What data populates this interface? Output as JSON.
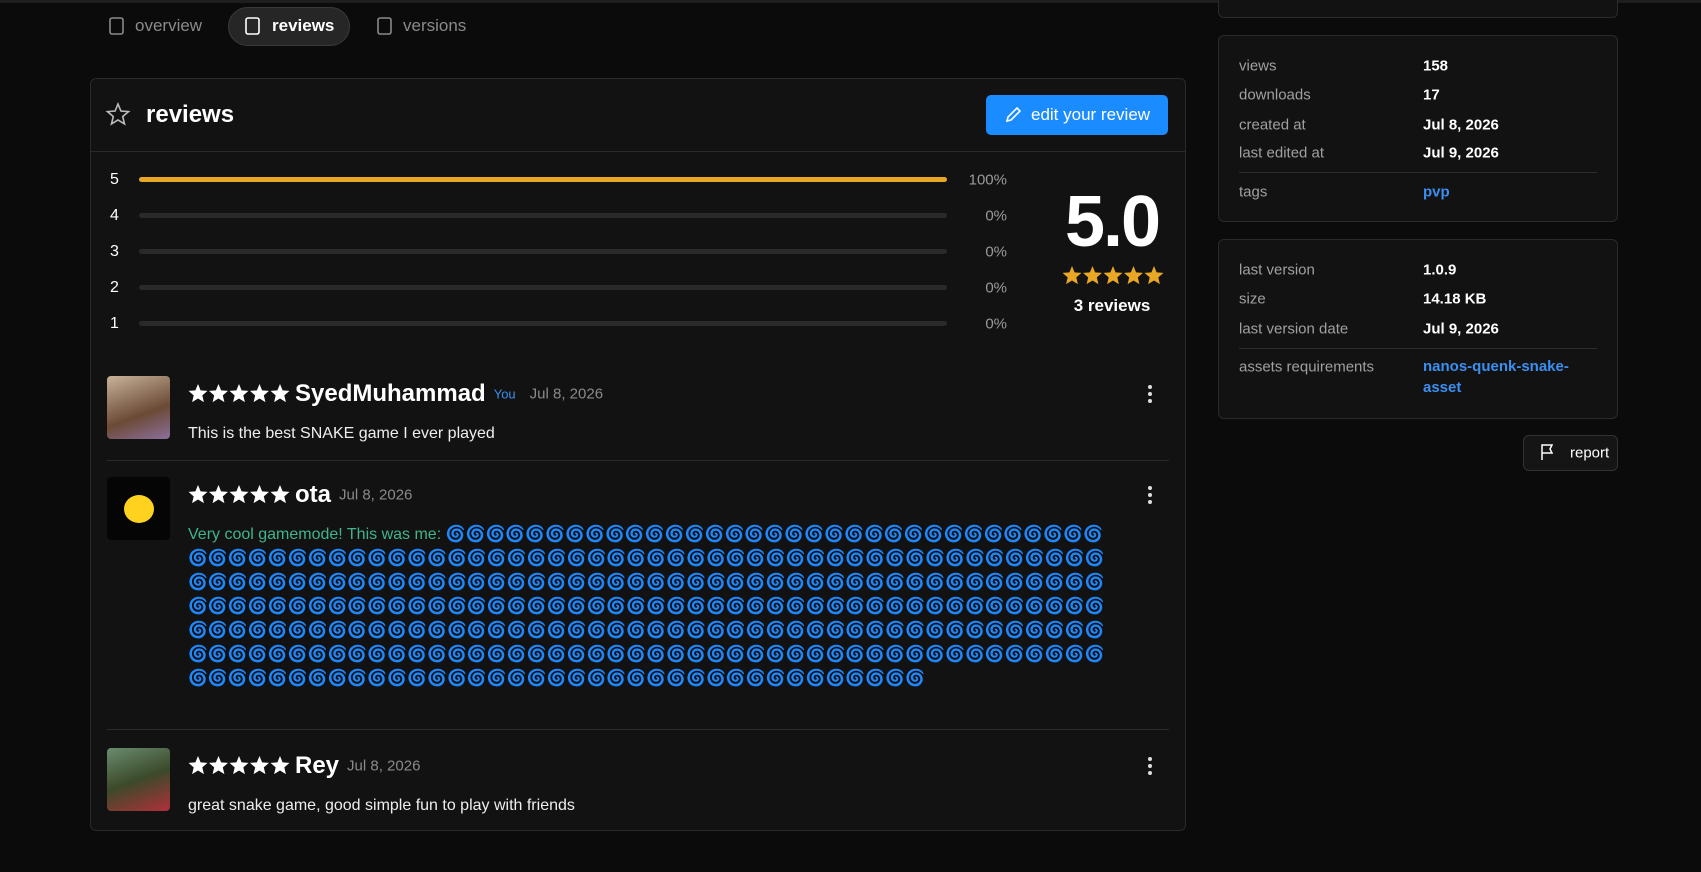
{
  "tabs": [
    "overview",
    "reviews",
    "versions"
  ],
  "active_tab": 1,
  "reviews_panel": {
    "title": "reviews",
    "edit_button": "edit your review",
    "distribution": {
      "stars": [
        "5",
        "4",
        "3",
        "2",
        "1"
      ],
      "values": [
        100,
        0,
        0,
        0,
        0
      ],
      "value_labels": [
        "100%",
        "0%",
        "0%",
        "0%",
        "0%"
      ],
      "xlim": [
        0,
        100
      ],
      "color": "#e8a825"
    },
    "average": {
      "value": 5,
      "label": "5.0"
    },
    "count_label": "3 reviews",
    "reviews": [
      {
        "rating": 5,
        "author": "SyedMuhammad",
        "badge": "You",
        "date": "Jul 8, 2026",
        "text": "This is the best SNAKE game I ever played"
      },
      {
        "rating": 5,
        "author": "ota",
        "date": "Jul 8, 2026",
        "text": "Very cool gamemode! This was me: 🌀🌀🌀🌀🌀🌀🌀🌀🌀🌀🌀🌀🌀🌀🌀🌀🌀🌀🌀🌀🌀🌀🌀🌀🌀🌀🌀🌀🌀🌀🌀🌀🌀🌀🌀🌀🌀🌀🌀🌀🌀🌀🌀🌀🌀🌀🌀🌀🌀🌀🌀🌀🌀🌀🌀🌀🌀🌀🌀🌀🌀🌀🌀🌀🌀🌀🌀🌀🌀🌀🌀🌀🌀🌀🌀🌀🌀🌀🌀🌀🌀🌀🌀🌀🌀🌀🌀🌀🌀🌀🌀🌀🌀🌀🌀🌀🌀🌀🌀🌀🌀🌀🌀🌀🌀🌀🌀🌀🌀🌀🌀🌀🌀🌀🌀🌀🌀🌀🌀🌀🌀🌀🌀🌀🌀🌀🌀🌀🌀🌀🌀🌀🌀🌀🌀🌀🌀🌀🌀🌀🌀🌀🌀🌀🌀🌀🌀🌀🌀🌀🌀🌀🌀🌀🌀🌀🌀🌀🌀🌀🌀🌀🌀🌀🌀🌀🌀🌀🌀🌀🌀🌀🌀🌀🌀🌀🌀🌀🌀🌀🌀🌀🌀🌀🌀🌀🌀🌀🌀🌀🌀🌀🌀🌀🌀🌀🌀🌀🌀🌀🌀🌀🌀🌀🌀🌀🌀🌀🌀🌀🌀🌀🌀🌀🌀🌀🌀🌀🌀🌀🌀🌀🌀🌀🌀🌀🌀🌀🌀🌀🌀🌀🌀🌀🌀🌀🌀🌀🌀🌀🌀🌀🌀🌀🌀🌀🌀🌀🌀🌀🌀🌀🌀🌀🌀🌀🌀🌀🌀🌀🌀🌀🌀🌀🌀🌀🌀🌀🌀🌀🌀🌀🌀🌀🌀🌀🌀🌀🌀🌀🌀🌀🌀🌀🌀🌀🌀🌀🌀🌀🌀🌀🌀🌀🌀🌀🌀🌀🌀🌀"
      },
      {
        "rating": 5,
        "author": "Rey",
        "date": "Jul 8, 2026",
        "text": "great snake game, good simple fun to play with friends"
      }
    ]
  },
  "sidebar": {
    "stats": [
      {
        "label": "views",
        "value": "158"
      },
      {
        "label": "downloads",
        "value": "17"
      },
      {
        "label": "created at",
        "value": "Jul 8, 2026"
      },
      {
        "label": "last edited at",
        "value": "Jul 9, 2026"
      }
    ],
    "tags": {
      "label": "tags",
      "value": "pvp"
    },
    "version": [
      {
        "label": "last version",
        "value": "1.0.9"
      },
      {
        "label": "size",
        "value": "14.18 KB"
      },
      {
        "label": "last version date",
        "value": "Jul 9, 2026"
      }
    ],
    "assets": {
      "label": "assets requirements",
      "value": "nanos-quenk-snake-asset"
    },
    "report": "report"
  }
}
